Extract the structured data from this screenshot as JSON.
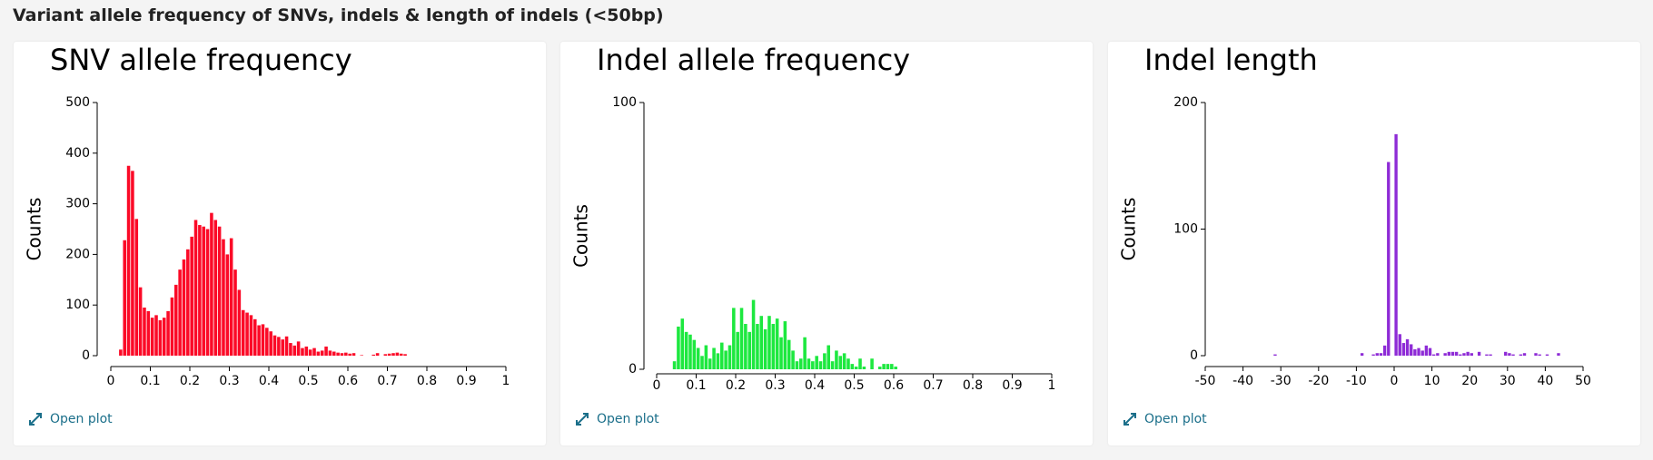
{
  "header": {
    "title": "Variant allele frequency of SNVs, indels & length of indels (<50bp)"
  },
  "links": [
    "Open plot",
    "Open plot",
    "Open plot"
  ],
  "chart_data": [
    {
      "type": "histogram",
      "title": "SNV allele frequency",
      "y_label": "Counts",
      "color": "#fb0a27",
      "bins": [
        0.02,
        0.03,
        0.04,
        0.05,
        0.06,
        0.07,
        0.08,
        0.09,
        0.1,
        0.11,
        0.12,
        0.13,
        0.14,
        0.15,
        0.16,
        0.17,
        0.18,
        0.19,
        0.2,
        0.21,
        0.22,
        0.23,
        0.24,
        0.25,
        0.26,
        0.27,
        0.28,
        0.29,
        0.3,
        0.31,
        0.32,
        0.33,
        0.34,
        0.35,
        0.36,
        0.37,
        0.38,
        0.39,
        0.4,
        0.41,
        0.42,
        0.43,
        0.44,
        0.45,
        0.46,
        0.47,
        0.48,
        0.49,
        0.5,
        0.51,
        0.52,
        0.53,
        0.54,
        0.55,
        0.56,
        0.57,
        0.58,
        0.59,
        0.6,
        0.61,
        0.62,
        0.63,
        0.64,
        0.65,
        0.66,
        0.67,
        0.68,
        0.69,
        0.7,
        0.71,
        0.72,
        0.73,
        0.74,
        0.75
      ],
      "values": [
        12,
        228,
        375,
        365,
        270,
        135,
        95,
        88,
        75,
        80,
        70,
        75,
        88,
        115,
        140,
        170,
        190,
        210,
        235,
        268,
        258,
        255,
        250,
        282,
        268,
        255,
        230,
        200,
        232,
        170,
        130,
        90,
        85,
        80,
        72,
        60,
        62,
        55,
        48,
        40,
        37,
        32,
        38,
        25,
        20,
        28,
        15,
        18,
        12,
        15,
        8,
        10,
        18,
        10,
        8,
        6,
        5,
        6,
        4,
        5,
        0,
        1,
        0,
        0,
        2,
        5,
        0,
        3,
        4,
        5,
        6,
        4,
        3
      ],
      "xlim": [
        0,
        1
      ],
      "xticks": [
        0,
        0.1,
        0.2,
        0.3,
        0.4,
        0.5,
        0.6,
        0.7,
        0.8,
        0.9,
        1
      ],
      "ylim": [
        0,
        500
      ],
      "yticks": [
        0,
        100,
        200,
        300,
        400,
        500
      ]
    },
    {
      "type": "histogram",
      "title": "Indel allele frequency",
      "y_label": "Counts",
      "color": "#1de83f",
      "bins": [
        0.04,
        0.05,
        0.06,
        0.07,
        0.08,
        0.09,
        0.1,
        0.11,
        0.12,
        0.13,
        0.14,
        0.15,
        0.16,
        0.17,
        0.18,
        0.19,
        0.2,
        0.21,
        0.22,
        0.23,
        0.24,
        0.25,
        0.26,
        0.27,
        0.28,
        0.29,
        0.3,
        0.31,
        0.32,
        0.33,
        0.34,
        0.35,
        0.36,
        0.37,
        0.38,
        0.39,
        0.4,
        0.41,
        0.42,
        0.43,
        0.44,
        0.45,
        0.46,
        0.47,
        0.48,
        0.49,
        0.5,
        0.51,
        0.52,
        0.53,
        0.54,
        0.55,
        0.56,
        0.57,
        0.58,
        0.59,
        0.6,
        0.61
      ],
      "values": [
        3,
        16,
        19,
        14,
        13,
        11,
        8,
        5,
        9,
        4,
        8,
        6,
        10,
        7,
        9,
        23,
        14,
        23,
        17,
        14,
        26,
        17,
        20,
        15,
        20,
        17,
        19,
        12,
        18,
        11,
        7,
        3,
        4,
        12,
        4,
        3,
        5,
        3,
        6,
        9,
        3,
        7,
        5,
        6,
        4,
        2,
        1,
        4,
        1,
        0,
        4,
        0,
        1,
        2,
        2,
        2,
        1
      ],
      "xlim": [
        0,
        1
      ],
      "xticks": [
        0,
        0.1,
        0.2,
        0.3,
        0.4,
        0.5,
        0.6,
        0.7,
        0.8,
        0.9,
        1
      ],
      "ylim": [
        0,
        100
      ],
      "yticks": [
        0,
        100
      ]
    },
    {
      "type": "histogram",
      "title": "Indel length",
      "y_label": "Counts",
      "color": "#8e2bd6",
      "bins": [
        -32,
        -31,
        -30,
        -29,
        -28,
        -27,
        -26,
        -25,
        -24,
        -23,
        -22,
        -21,
        -20,
        -19,
        -18,
        -17,
        -16,
        -15,
        -14,
        -13,
        -12,
        -11,
        -10,
        -9,
        -8,
        -7,
        -6,
        -5,
        -4,
        -3,
        -2,
        -1,
        0,
        1,
        2,
        3,
        4,
        5,
        6,
        7,
        8,
        9,
        10,
        11,
        12,
        13,
        14,
        15,
        16,
        17,
        18,
        19,
        20,
        21,
        22,
        23,
        24,
        25,
        26,
        27,
        28,
        29,
        30,
        31,
        32,
        33,
        34,
        35,
        36,
        37,
        38,
        39,
        40,
        41,
        42,
        43,
        44
      ],
      "values": [
        1,
        0,
        0,
        0,
        0,
        0,
        0,
        0,
        0,
        0,
        0,
        0,
        0,
        0,
        0,
        0,
        0,
        0,
        0,
        0,
        0,
        0,
        0,
        2,
        0,
        0,
        1,
        2,
        2,
        8,
        153,
        0,
        175,
        17,
        10,
        13,
        9,
        5,
        6,
        4,
        8,
        6,
        1,
        2,
        0,
        2,
        3,
        3,
        3,
        1,
        2,
        3,
        2,
        0,
        3,
        0,
        1,
        1,
        0,
        0,
        0,
        3,
        2,
        1,
        0,
        1,
        2,
        0,
        0,
        2,
        1,
        0,
        1,
        0,
        0,
        2
      ],
      "xlim": [
        -50,
        50
      ],
      "xticks": [
        -50,
        -40,
        -30,
        -20,
        -10,
        0,
        10,
        20,
        30,
        40,
        50
      ],
      "ylim": [
        0,
        200
      ],
      "yticks": [
        0,
        100,
        200
      ]
    }
  ]
}
